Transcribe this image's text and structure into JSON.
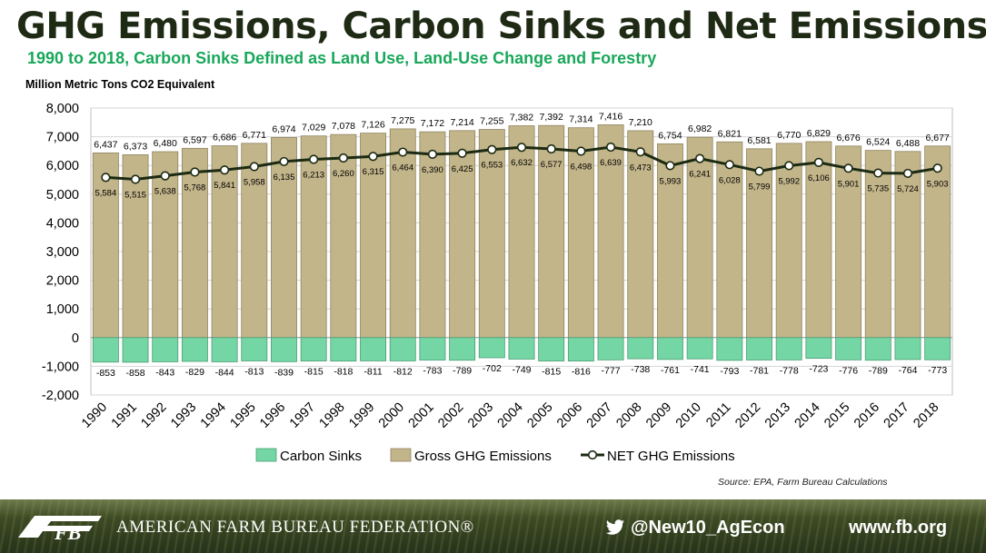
{
  "title": "GHG Emissions, Carbon Sinks and Net Emissions",
  "subtitle": "1990 to 2018, Carbon Sinks Defined as Land Use, Land-Use Change and Forestry",
  "unit_label": "Million Metric Tons CO2 Equivalent",
  "source": "Source: EPA, Farm Bureau Calculations",
  "footer": {
    "org_name": "AMERICAN FARM BUREAU FEDERATION®",
    "twitter_handle": "@New10_AgEcon",
    "website": "www.fb.org"
  },
  "colors": {
    "gross_fill": "#c3b58a",
    "sink_fill": "#74d6a4",
    "net_line": "#1b2a12",
    "title": "#1f2a14",
    "subtitle": "#19a85a"
  },
  "chart_data": {
    "type": "bar",
    "categories": [
      "1990",
      "1991",
      "1992",
      "1993",
      "1994",
      "1995",
      "1996",
      "1997",
      "1998",
      "1999",
      "2000",
      "2001",
      "2002",
      "2003",
      "2004",
      "2005",
      "2006",
      "2007",
      "2008",
      "2009",
      "2010",
      "2011",
      "2012",
      "2013",
      "2014",
      "2015",
      "2016",
      "2017",
      "2018"
    ],
    "ylim": [
      -2000,
      8000
    ],
    "yticks": [
      "8,000",
      "7,000",
      "6,000",
      "5,000",
      "4,000",
      "3,000",
      "2,000",
      "1,000",
      "0",
      "-1,000",
      "-2,000"
    ],
    "grid": true,
    "legend_position": "bottom",
    "series": [
      {
        "name": "Carbon Sinks",
        "kind": "bar",
        "values": [
          -853,
          -858,
          -843,
          -829,
          -844,
          -813,
          -839,
          -815,
          -818,
          -811,
          -812,
          -783,
          -789,
          -702,
          -749,
          -815,
          -816,
          -777,
          -738,
          -761,
          -741,
          -793,
          -781,
          -778,
          -723,
          -776,
          -789,
          -764,
          -773
        ]
      },
      {
        "name": "Gross GHG Emissions",
        "kind": "bar",
        "values": [
          6437,
          6373,
          6480,
          6597,
          6686,
          6771,
          6974,
          7029,
          7078,
          7126,
          7275,
          7172,
          7214,
          7255,
          7382,
          7392,
          7314,
          7416,
          7210,
          6754,
          6982,
          6821,
          6581,
          6770,
          6829,
          6676,
          6524,
          6488,
          6677
        ]
      },
      {
        "name": "NET GHG Emissions",
        "kind": "line",
        "values": [
          5584,
          5515,
          5638,
          5768,
          5841,
          5958,
          6135,
          6213,
          6260,
          6315,
          6464,
          6390,
          6425,
          6553,
          6632,
          6577,
          6498,
          6639,
          6473,
          5993,
          6241,
          6028,
          5799,
          5992,
          6106,
          5901,
          5735,
          5724,
          5903
        ]
      }
    ]
  }
}
